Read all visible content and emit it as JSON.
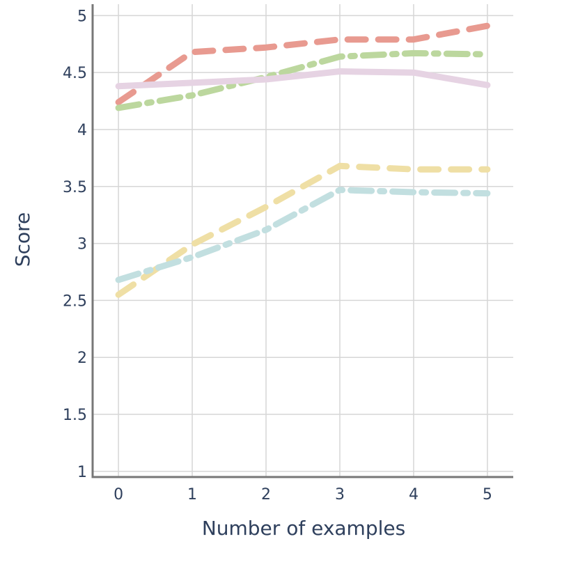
{
  "chart_data": {
    "type": "line",
    "title": "",
    "xlabel": "Number of examples",
    "ylabel": "Score",
    "x": [
      0,
      1,
      2,
      3,
      4,
      5
    ],
    "xlim": [
      -0.35,
      5.35
    ],
    "ylim": [
      0.95,
      5.1
    ],
    "x_ticks": [
      "0",
      "1",
      "2",
      "3",
      "4",
      "5"
    ],
    "y_ticks": [
      "1",
      "1.5",
      "2",
      "2.5",
      "3",
      "3.5",
      "4",
      "4.5",
      "5"
    ],
    "grid": true,
    "legend": "none",
    "colors": {
      "axis": "#777777",
      "grid": "#d6d6d6",
      "text": "#2e3f5c"
    },
    "series": [
      {
        "values": [
          4.24,
          4.68,
          4.72,
          4.79,
          4.79,
          4.91
        ],
        "color": "#e89a90",
        "style": "dashed"
      },
      {
        "values": [
          4.19,
          4.3,
          4.46,
          4.64,
          4.67,
          4.66
        ],
        "color": "#bcd79e",
        "style": "dashdot"
      },
      {
        "values": [
          4.38,
          4.41,
          4.44,
          4.51,
          4.5,
          4.39
        ],
        "color": "#e6d3e3",
        "style": "solid"
      },
      {
        "values": [
          2.55,
          2.99,
          3.32,
          3.68,
          3.65,
          3.65
        ],
        "color": "#efdfa5",
        "style": "dashed"
      },
      {
        "values": [
          2.68,
          2.88,
          3.12,
          3.47,
          3.45,
          3.44
        ],
        "color": "#c2dfe0",
        "style": "dashdot"
      }
    ]
  }
}
